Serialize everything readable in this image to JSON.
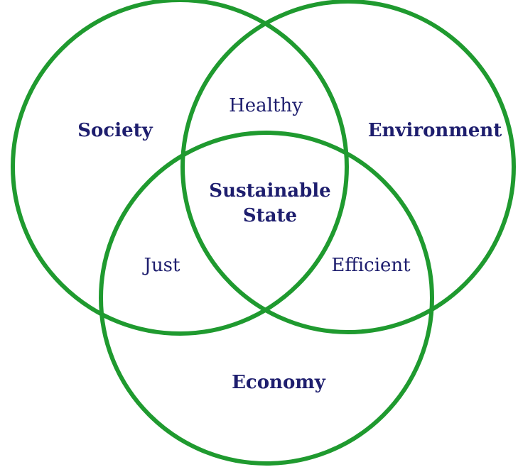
{
  "sets": [
    {
      "label": "Society"
    },
    {
      "label": "Environment"
    },
    {
      "label": "Economy"
    }
  ],
  "intersections": [
    {
      "label": "Healthy"
    },
    {
      "label": "Just"
    },
    {
      "label": "Efficient"
    },
    {
      "label": "Sustainable State"
    }
  ]
}
